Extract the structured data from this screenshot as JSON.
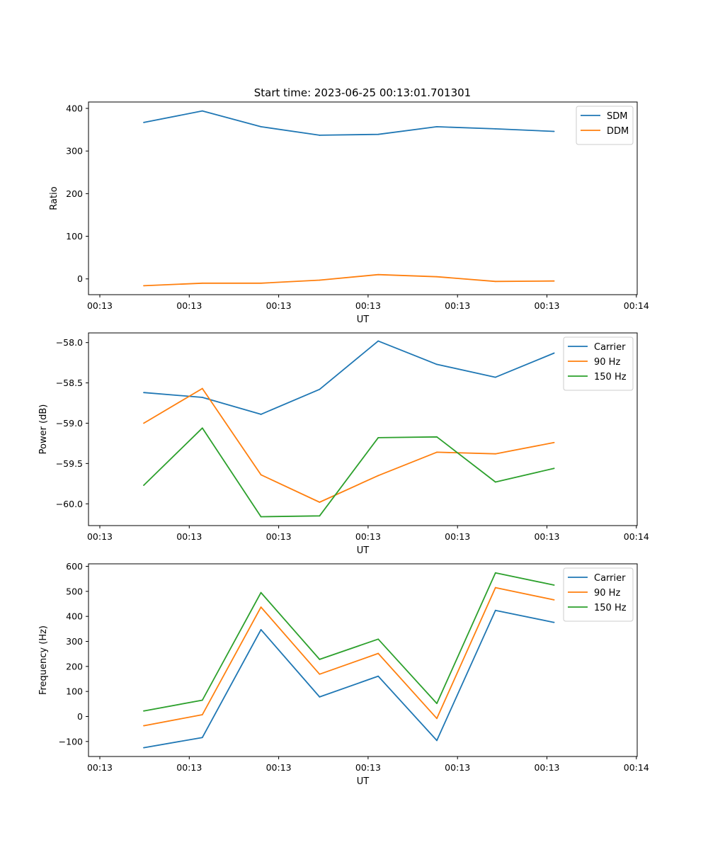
{
  "figure": {
    "title": "Start time: 2023-06-25 00:13:01.701301"
  },
  "chart_data": [
    {
      "type": "line",
      "title": "Start time: 2023-06-25 00:13:01.701301",
      "xlabel": "UT",
      "ylabel": "Ratio",
      "x_tick_labels": [
        "00:13",
        "00:13",
        "00:13",
        "00:13",
        "00:13",
        "00:13",
        "00:14"
      ],
      "x_point_ticks": [
        0.5,
        1.15,
        1.8,
        2.45,
        3.1,
        3.75,
        4.4,
        5.05
      ],
      "xlim": [
        0.0,
        6.0
      ],
      "ylim": [
        -37,
        415
      ],
      "y_ticks": [
        0,
        100,
        200,
        300,
        400
      ],
      "legend_position": "top-right",
      "series": [
        {
          "name": "SDM",
          "color": "#1f77b4",
          "values": [
            367,
            394,
            357,
            337,
            339,
            357,
            352,
            346
          ]
        },
        {
          "name": "DDM",
          "color": "#ff7f0e",
          "values": [
            -16,
            -10,
            -10,
            -3,
            10,
            5,
            -6,
            -5
          ]
        }
      ]
    },
    {
      "type": "line",
      "xlabel": "UT",
      "ylabel": "Power (dB)",
      "x_tick_labels": [
        "00:13",
        "00:13",
        "00:13",
        "00:13",
        "00:13",
        "00:13",
        "00:14"
      ],
      "x_point_ticks": [
        0.5,
        1.15,
        1.8,
        2.45,
        3.1,
        3.75,
        4.4,
        5.05
      ],
      "xlim": [
        0.0,
        6.0
      ],
      "ylim": [
        -60.27,
        -57.88
      ],
      "y_ticks": [
        -60.0,
        -59.5,
        -59.0,
        -58.5,
        -58.0
      ],
      "y_tick_labels": [
        "−60.0",
        "−59.5",
        "−59.0",
        "−58.5",
        "−58.0"
      ],
      "legend_position": "top-right",
      "series": [
        {
          "name": "Carrier",
          "color": "#1f77b4",
          "values": [
            -58.62,
            -58.68,
            -58.89,
            -58.58,
            -57.98,
            -58.27,
            -58.43,
            -58.13
          ]
        },
        {
          "name": "90 Hz",
          "color": "#ff7f0e",
          "values": [
            -59.0,
            -58.57,
            -59.64,
            -59.98,
            -59.65,
            -59.36,
            -59.38,
            -59.24
          ]
        },
        {
          "name": "150 Hz",
          "color": "#2ca02c",
          "values": [
            -59.77,
            -59.06,
            -60.16,
            -60.15,
            -59.18,
            -59.17,
            -59.73,
            -59.56
          ]
        }
      ]
    },
    {
      "type": "line",
      "xlabel": "UT",
      "ylabel": "Frequency (Hz)",
      "x_tick_labels": [
        "00:13",
        "00:13",
        "00:13",
        "00:13",
        "00:13",
        "00:13",
        "00:14"
      ],
      "x_point_ticks": [
        0.5,
        1.15,
        1.8,
        2.45,
        3.1,
        3.75,
        4.4,
        5.05
      ],
      "xlim": [
        0.0,
        6.0
      ],
      "ylim": [
        -160,
        610
      ],
      "y_ticks": [
        -100,
        0,
        100,
        200,
        300,
        400,
        500,
        600
      ],
      "y_tick_labels": [
        "−100",
        "0",
        "100",
        "200",
        "300",
        "400",
        "500",
        "600"
      ],
      "legend_position": "top-right",
      "series": [
        {
          "name": "Carrier",
          "color": "#1f77b4",
          "values": [
            -125,
            -84,
            347,
            78,
            161,
            -96,
            424,
            376
          ]
        },
        {
          "name": "90 Hz",
          "color": "#ff7f0e",
          "values": [
            -37,
            7,
            437,
            169,
            252,
            -8,
            515,
            466
          ]
        },
        {
          "name": "150 Hz",
          "color": "#2ca02c",
          "values": [
            22,
            65,
            495,
            228,
            309,
            52,
            574,
            525
          ]
        }
      ]
    }
  ]
}
